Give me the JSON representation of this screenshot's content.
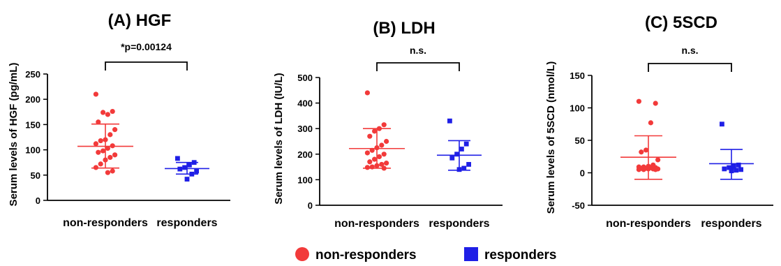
{
  "legend": {
    "items": [
      {
        "label": "non-responders",
        "shape": "circle",
        "color": "#f23a3a"
      },
      {
        "label": "responders",
        "shape": "square",
        "color": "#1f1fe6"
      }
    ]
  },
  "chart_data": [
    {
      "type": "scatter",
      "title": "(A) HGF",
      "ylabel": "Serum levels of HGF (pg/mL)",
      "categories": [
        "non-responders",
        "responders"
      ],
      "ylim": [
        0,
        250
      ],
      "yticks": [
        0,
        50,
        100,
        150,
        200,
        250
      ],
      "annotation": "*p=0.00124",
      "series": [
        {
          "name": "non-responders",
          "color": "#f23a3a",
          "marker": "circle",
          "values": [
            210,
            176,
            170,
            174,
            155,
            140,
            130,
            120,
            118,
            112,
            108,
            103,
            98,
            95,
            90,
            85,
            80,
            72,
            65,
            58,
            55
          ],
          "mean": 107,
          "sd_low": 64,
          "sd_high": 151
        },
        {
          "name": "responders",
          "color": "#1f1fe6",
          "marker": "square",
          "values": [
            83,
            75,
            70,
            65,
            62,
            58,
            52,
            42
          ],
          "mean": 63,
          "sd_low": 52,
          "sd_high": 75
        }
      ]
    },
    {
      "type": "scatter",
      "title": "(B) LDH",
      "ylabel": "Serum levels of LDH (IU/L)",
      "categories": [
        "non-responders",
        "responders"
      ],
      "ylim": [
        0,
        500
      ],
      "yticks": [
        0,
        100,
        200,
        300,
        400,
        500
      ],
      "annotation": "n.s.",
      "series": [
        {
          "name": "non-responders",
          "color": "#f23a3a",
          "marker": "circle",
          "values": [
            440,
            315,
            300,
            290,
            270,
            250,
            235,
            225,
            215,
            205,
            200,
            190,
            180,
            170,
            165,
            160,
            155,
            150,
            148,
            145
          ],
          "mean": 222,
          "sd_low": 145,
          "sd_high": 300
        },
        {
          "name": "responders",
          "color": "#1f1fe6",
          "marker": "square",
          "values": [
            330,
            240,
            220,
            200,
            185,
            160,
            145,
            140
          ],
          "mean": 196,
          "sd_low": 137,
          "sd_high": 253
        }
      ]
    },
    {
      "type": "scatter",
      "title": "(C) 5SCD",
      "ylabel": "Serum levels of 5SCD (nmol/L)",
      "categories": [
        "non-responders",
        "responders"
      ],
      "ylim": [
        -50,
        150
      ],
      "yticks": [
        -50,
        0,
        50,
        100,
        150
      ],
      "annotation": "n.s.",
      "series": [
        {
          "name": "non-responders",
          "color": "#f23a3a",
          "marker": "circle",
          "values": [
            110,
            107,
            77,
            35,
            32,
            20,
            12,
            10,
            9,
            9,
            8,
            8,
            7,
            7,
            6,
            6,
            6,
            5,
            5,
            5
          ],
          "mean": 24,
          "sd_low": -10,
          "sd_high": 57
        },
        {
          "name": "responders",
          "color": "#1f1fe6",
          "marker": "square",
          "values": [
            75,
            12,
            10,
            8,
            6,
            5,
            4,
            3
          ],
          "mean": 14,
          "sd_low": -10,
          "sd_high": 36
        }
      ]
    }
  ]
}
